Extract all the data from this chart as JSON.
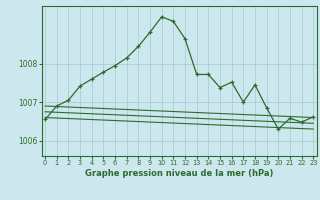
{
  "title": "Graphe pression niveau de la mer (hPa)",
  "bg_color": "#cce8ee",
  "grid_color": "#aacdd6",
  "line_color": "#2d6a2d",
  "xlim": [
    -0.3,
    23.3
  ],
  "ylim": [
    1005.6,
    1009.5
  ],
  "yticks": [
    1006,
    1007,
    1008
  ],
  "xticks": [
    0,
    1,
    2,
    3,
    4,
    5,
    6,
    7,
    8,
    9,
    10,
    11,
    12,
    13,
    14,
    15,
    16,
    17,
    18,
    19,
    20,
    21,
    22,
    23
  ],
  "series1": {
    "x": [
      0,
      1,
      2,
      3,
      4,
      5,
      6,
      7,
      8,
      9,
      10,
      11,
      12,
      13,
      14,
      15,
      16,
      17,
      18,
      19,
      20,
      21,
      22,
      23
    ],
    "y": [
      1006.55,
      1006.9,
      1007.05,
      1007.42,
      1007.6,
      1007.78,
      1007.95,
      1008.15,
      1008.45,
      1008.82,
      1009.22,
      1009.1,
      1008.65,
      1007.72,
      1007.72,
      1007.38,
      1007.52,
      1007.0,
      1007.45,
      1006.85,
      1006.3,
      1006.58,
      1006.48,
      1006.62
    ]
  },
  "series2": {
    "x": [
      0,
      23
    ],
    "y": [
      1006.9,
      1006.6
    ]
  },
  "series3": {
    "x": [
      0,
      23
    ],
    "y": [
      1006.75,
      1006.45
    ]
  },
  "series4": {
    "x": [
      0,
      23
    ],
    "y": [
      1006.6,
      1006.3
    ]
  }
}
